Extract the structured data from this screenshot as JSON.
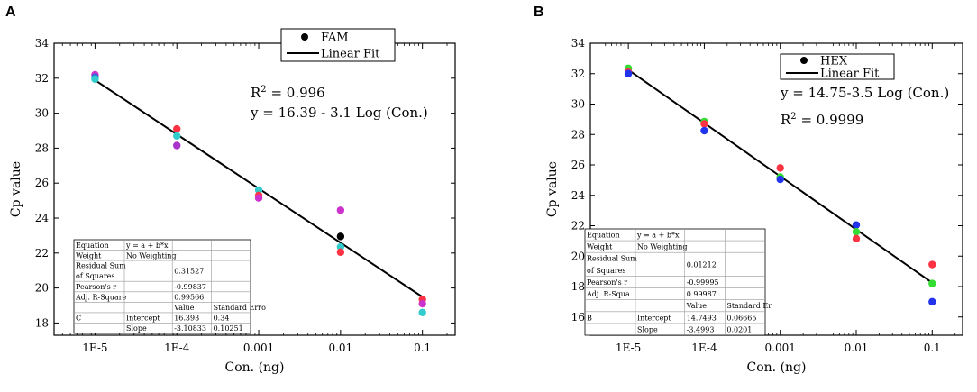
{
  "chart_data": [
    {
      "type": "scatter",
      "panel_label": "A",
      "xlabel": "Con. (ng)",
      "ylabel": "Cp value",
      "x_scale": "log10",
      "xlim": [
        -5.5,
        -0.6
      ],
      "ylim": [
        17.3,
        34
      ],
      "x_ticks": [
        {
          "value": -5,
          "label": "1E-5"
        },
        {
          "value": -4,
          "label": "1E-4"
        },
        {
          "value": -3,
          "label": "0.001"
        },
        {
          "value": -2,
          "label": "0.01"
        },
        {
          "value": -1,
          "label": "0.1"
        }
      ],
      "y_ticks": [
        18,
        20,
        22,
        24,
        26,
        28,
        30,
        32,
        34
      ],
      "legend": {
        "position": "top-center",
        "entries": [
          "FAM",
          "Linear Fit"
        ]
      },
      "annotations": [
        "R2 = 0.996",
        "y = 16.39 - 3.1 Log (Con.)"
      ],
      "fit": {
        "intercept": 16.39,
        "slope": -3.1
      },
      "points": [
        {
          "x": -5,
          "y": 32.2,
          "color": "#cc33cc"
        },
        {
          "x": -5,
          "y": 32.05,
          "color": "#2b6ad6"
        },
        {
          "x": -5,
          "y": 31.95,
          "color": "#33cccc"
        },
        {
          "x": -4,
          "y": 29.1,
          "color": "#ff3344"
        },
        {
          "x": -4,
          "y": 28.7,
          "color": "#33cccc"
        },
        {
          "x": -4,
          "y": 28.15,
          "color": "#aa33cc"
        },
        {
          "x": -3,
          "y": 25.6,
          "color": "#33cccc"
        },
        {
          "x": -3,
          "y": 25.3,
          "color": "#ff3344"
        },
        {
          "x": -3,
          "y": 25.15,
          "color": "#cc33cc"
        },
        {
          "x": -2,
          "y": 24.45,
          "color": "#cc33cc"
        },
        {
          "x": -2,
          "y": 22.95,
          "color": "#000000"
        },
        {
          "x": -2,
          "y": 22.35,
          "color": "#33cccc"
        },
        {
          "x": -2,
          "y": 22.05,
          "color": "#ff3344"
        },
        {
          "x": -1,
          "y": 19.35,
          "color": "#ff3344"
        },
        {
          "x": -1,
          "y": 19.1,
          "color": "#cc33cc"
        },
        {
          "x": -1,
          "y": 18.6,
          "color": "#33cccc"
        }
      ],
      "table": {
        "rows": [
          [
            "Equation",
            "y = a + b*x",
            "",
            ""
          ],
          [
            "Weight",
            "No Weighting",
            "",
            ""
          ],
          [
            "Residual Sum of Squares",
            "",
            "0.31527",
            ""
          ],
          [
            "Pearson's r",
            "",
            "-0.99837",
            ""
          ],
          [
            "Adj. R-Square",
            "",
            "0.99566",
            ""
          ],
          [
            "",
            "",
            "Value",
            "Standard Erro"
          ],
          [
            "C",
            "Intercept",
            "16.393",
            "0.34"
          ],
          [
            "",
            "Slope",
            "-3.10833",
            "0.10251"
          ]
        ]
      }
    },
    {
      "type": "scatter",
      "panel_label": "B",
      "xlabel": "Con. (ng)",
      "ylabel": "Cp value",
      "x_scale": "log10",
      "xlim": [
        -5.5,
        -0.6
      ],
      "ylim": [
        14.8,
        34
      ],
      "x_ticks": [
        {
          "value": -5,
          "label": "1E-5"
        },
        {
          "value": -4,
          "label": "1E-4"
        },
        {
          "value": -3,
          "label": "0.001"
        },
        {
          "value": -2,
          "label": "0.01"
        },
        {
          "value": -1,
          "label": "0.1"
        }
      ],
      "y_ticks": [
        16,
        18,
        20,
        22,
        24,
        26,
        28,
        30,
        32,
        34
      ],
      "legend": {
        "position": "top-right",
        "entries": [
          "HEX",
          "Linear Fit"
        ]
      },
      "annotations": [
        "y = 14.75-3.5 Log (Con.)",
        "R2 = 0.9999"
      ],
      "fit": {
        "intercept": 14.75,
        "slope": -3.5
      },
      "points": [
        {
          "x": -5,
          "y": 32.35,
          "color": "#33dd33"
        },
        {
          "x": -5,
          "y": 32.1,
          "color": "#ff3344"
        },
        {
          "x": -5,
          "y": 32.0,
          "color": "#2233ee"
        },
        {
          "x": -4,
          "y": 28.85,
          "color": "#33dd33"
        },
        {
          "x": -4,
          "y": 28.7,
          "color": "#ff3344"
        },
        {
          "x": -4,
          "y": 28.25,
          "color": "#2233ee"
        },
        {
          "x": -3,
          "y": 25.8,
          "color": "#ff3344"
        },
        {
          "x": -3,
          "y": 25.2,
          "color": "#33dd33"
        },
        {
          "x": -3,
          "y": 25.05,
          "color": "#2233ee"
        },
        {
          "x": -2,
          "y": 22.05,
          "color": "#2233ee"
        },
        {
          "x": -2,
          "y": 21.6,
          "color": "#33dd33"
        },
        {
          "x": -2,
          "y": 21.15,
          "color": "#ff3344"
        },
        {
          "x": -1,
          "y": 19.45,
          "color": "#ff3344"
        },
        {
          "x": -1,
          "y": 18.2,
          "color": "#33dd33"
        },
        {
          "x": -1,
          "y": 17.0,
          "color": "#2233ee"
        }
      ],
      "table": {
        "rows": [
          [
            "Equation",
            "y = a + b*x",
            "",
            ""
          ],
          [
            "Weight",
            "No Weighting",
            "",
            ""
          ],
          [
            "Residual Sum of Squares",
            "",
            "0.01212",
            ""
          ],
          [
            "Pearson's r",
            "",
            "-0.99995",
            ""
          ],
          [
            "Adj. R-Squa",
            "",
            "0.99987",
            ""
          ],
          [
            "",
            "",
            "Value",
            "Standard Er"
          ],
          [
            "B",
            "Intercept",
            "14.7493",
            "0.06665"
          ],
          [
            "",
            "Slope",
            "-3.4993",
            "0.0201"
          ]
        ]
      }
    }
  ]
}
